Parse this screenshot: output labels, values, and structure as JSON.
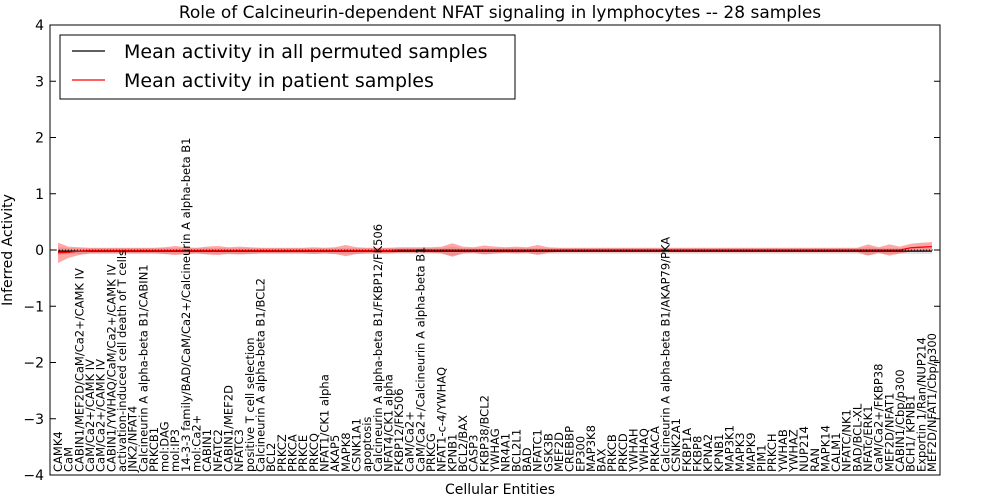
{
  "chart_data": {
    "type": "line",
    "title": "Role of Calcineurin-dependent NFAT signaling in lymphocytes -- 28 samples",
    "xlabel": "Cellular Entities",
    "ylabel": "Inferred Activity",
    "ylim": [
      -4,
      4
    ],
    "yticks": [
      -4,
      -3,
      -2,
      -1,
      0,
      1,
      2,
      3,
      4
    ],
    "ytick_labels": [
      "−4",
      "−3",
      "−2",
      "−1",
      "0",
      "1",
      "2",
      "3",
      "4"
    ],
    "legend": {
      "position": "top-left",
      "entries": [
        {
          "label": "Mean activity in all permuted samples",
          "color": "#000000"
        },
        {
          "label": "Mean activity in patient samples",
          "color": "#ff0000"
        }
      ]
    },
    "categories": [
      "CAMK4",
      "CaM",
      "CABIN1/MEF2D/CaM/Ca2+/CAMK IV",
      "CaM/Ca2+/CAMK IV",
      "CaM/Ca2+/CAMK IV",
      "CABIN1/YWHAQ/CaM/Ca2+/CAMK IV",
      "activation-induced cell death of T cells",
      "JNK2/NFAT4",
      "Calcineurin A alpha-beta B1/CABIN1",
      "PRKCB1",
      "mol:DAG",
      "mol:IP3",
      "14-3-3 family/BAD/CaM/Ca2+/Calcineurin A alpha-beta B1",
      "mol:Ca2+",
      "CABIN1",
      "NFATC2",
      "CABIN1/MEF2D",
      "NFATC3",
      "positive T cell selection",
      "Calcineurin A alpha-beta B1/BCL2",
      "BCL2",
      "PRKCZ",
      "PRKCA",
      "PRKCE",
      "PRKCQ",
      "NFAT1/CK1 alpha",
      "AKAP5",
      "MAPK8",
      "CSNK1A1",
      "apoptosis",
      "Calcineurin A alpha-beta B1/FKBP12/FK506",
      "NFAT4/CK1 alpha",
      "FKBP12/FK506",
      "CaM/Ca2+",
      "CaM/Ca2+/Calcineurin A alpha-beta B1",
      "PRKCG",
      "NFAT1-c-4/YWHAQ",
      "KPNB1",
      "BCL2/BAX",
      "CASP3",
      "FKBP38/BCL2",
      "YWHAG",
      "NR4A1",
      "BCL2L1",
      "BAD",
      "NFATC1",
      "GSK3B",
      "MEF2D",
      "CREBBP",
      "EP300",
      "MAP3K8",
      "BAX",
      "PRKCB",
      "PRKCD",
      "YWHAH",
      "YWHAQ",
      "PRKACA",
      "Calcineurin A alpha-beta B1/AKAP79/PKA",
      "CSNK2A1",
      "FKBP1A",
      "FKBP8",
      "KPNA2",
      "KPNB1",
      "MAP3K1",
      "MAPK3",
      "MAPK9",
      "PIM1",
      "PRKCH",
      "YWHAB",
      "YWHAZ",
      "NUP214",
      "RAN",
      "MAPK14",
      "CALM1",
      "NFATC/NK1",
      "BAD/BCL-XL",
      "NFATc/ERK1",
      "CaM/Ca2+/FKBP38",
      "MEF2D/NFAT1",
      "CABIN1/Cbp/p300",
      "BCH1/ KPNB1",
      "Exportin 1/Ran/NUP214",
      "MEF2D/NFAT1/Cbp/p300"
    ],
    "series": [
      {
        "name": "Mean activity in all permuted samples",
        "color": "#000000",
        "values": [
          -0.02,
          -0.02,
          -0.02,
          -0.02,
          -0.02,
          -0.02,
          -0.02,
          -0.02,
          -0.02,
          -0.02,
          -0.02,
          -0.02,
          -0.02,
          -0.02,
          -0.02,
          -0.02,
          -0.02,
          -0.02,
          -0.02,
          -0.02,
          -0.02,
          -0.02,
          -0.02,
          -0.02,
          -0.02,
          -0.02,
          -0.02,
          -0.02,
          -0.02,
          -0.02,
          -0.02,
          -0.02,
          -0.02,
          -0.02,
          -0.02,
          -0.02,
          -0.02,
          -0.02,
          -0.02,
          -0.02,
          -0.02,
          -0.02,
          -0.02,
          -0.02,
          -0.02,
          -0.02,
          -0.02,
          -0.02,
          -0.02,
          -0.02,
          -0.02,
          -0.02,
          -0.02,
          -0.02,
          -0.02,
          -0.02,
          -0.02,
          -0.02,
          -0.02,
          -0.02,
          -0.02,
          -0.02,
          -0.02,
          -0.02,
          -0.02,
          -0.02,
          -0.02,
          -0.02,
          -0.02,
          -0.02,
          -0.02,
          -0.02,
          -0.02,
          -0.02,
          -0.02,
          -0.02,
          -0.02,
          -0.02,
          -0.02,
          -0.02,
          -0.02,
          -0.02,
          -0.02
        ],
        "band": [
          0.07,
          0.05,
          0.05,
          0.05,
          0.05,
          0.05,
          0.05,
          0.05,
          0.05,
          0.05,
          0.05,
          0.05,
          0.05,
          0.05,
          0.05,
          0.05,
          0.05,
          0.05,
          0.05,
          0.05,
          0.05,
          0.05,
          0.05,
          0.05,
          0.05,
          0.05,
          0.05,
          0.05,
          0.05,
          0.05,
          0.05,
          0.05,
          0.05,
          0.05,
          0.05,
          0.05,
          0.05,
          0.08,
          0.05,
          0.05,
          0.05,
          0.05,
          0.05,
          0.05,
          0.05,
          0.05,
          0.05,
          0.05,
          0.05,
          0.05,
          0.05,
          0.05,
          0.05,
          0.05,
          0.05,
          0.05,
          0.05,
          0.05,
          0.05,
          0.05,
          0.05,
          0.05,
          0.05,
          0.05,
          0.05,
          0.05,
          0.05,
          0.05,
          0.05,
          0.05,
          0.05,
          0.05,
          0.05,
          0.05,
          0.05,
          0.05,
          0.07,
          0.05,
          0.05,
          0.05,
          0.05,
          0.05,
          0.05
        ]
      },
      {
        "name": "Mean activity in patient samples",
        "color": "#ff0000",
        "values": [
          -0.05,
          -0.04,
          -0.02,
          -0.01,
          -0.01,
          -0.01,
          -0.01,
          -0.01,
          -0.01,
          -0.01,
          -0.01,
          -0.01,
          -0.01,
          -0.01,
          -0.01,
          -0.01,
          -0.01,
          -0.01,
          -0.01,
          -0.01,
          -0.01,
          -0.01,
          -0.01,
          -0.01,
          -0.01,
          -0.01,
          -0.01,
          -0.01,
          -0.01,
          -0.01,
          -0.01,
          -0.01,
          0.0,
          0.0,
          0.0,
          0.0,
          0.0,
          0.0,
          0.0,
          0.0,
          0.0,
          0.0,
          0.0,
          0.0,
          0.0,
          0.0,
          0.0,
          0.0,
          0.0,
          0.0,
          0.0,
          0.0,
          0.0,
          0.0,
          0.0,
          0.0,
          0.0,
          0.0,
          0.0,
          0.0,
          0.0,
          0.0,
          0.0,
          0.0,
          0.0,
          0.0,
          0.0,
          0.0,
          0.0,
          0.0,
          0.0,
          0.0,
          0.0,
          0.0,
          0.0,
          0.0,
          0.0,
          0.0,
          0.0,
          0.0,
          0.04,
          0.05,
          0.06
        ],
        "band": [
          0.18,
          0.1,
          0.07,
          0.05,
          0.05,
          0.05,
          0.05,
          0.05,
          0.05,
          0.05,
          0.06,
          0.08,
          0.06,
          0.05,
          0.07,
          0.08,
          0.06,
          0.07,
          0.06,
          0.05,
          0.05,
          0.05,
          0.05,
          0.05,
          0.06,
          0.05,
          0.06,
          0.1,
          0.06,
          0.05,
          0.05,
          0.05,
          0.05,
          0.05,
          0.05,
          0.05,
          0.06,
          0.12,
          0.06,
          0.05,
          0.08,
          0.06,
          0.05,
          0.06,
          0.05,
          0.09,
          0.05,
          0.04,
          0.04,
          0.04,
          0.04,
          0.04,
          0.04,
          0.04,
          0.04,
          0.04,
          0.04,
          0.04,
          0.04,
          0.04,
          0.04,
          0.04,
          0.04,
          0.04,
          0.04,
          0.04,
          0.04,
          0.04,
          0.04,
          0.04,
          0.04,
          0.04,
          0.04,
          0.04,
          0.04,
          0.04,
          0.1,
          0.05,
          0.1,
          0.06,
          0.07,
          0.08,
          0.08
        ]
      }
    ]
  }
}
